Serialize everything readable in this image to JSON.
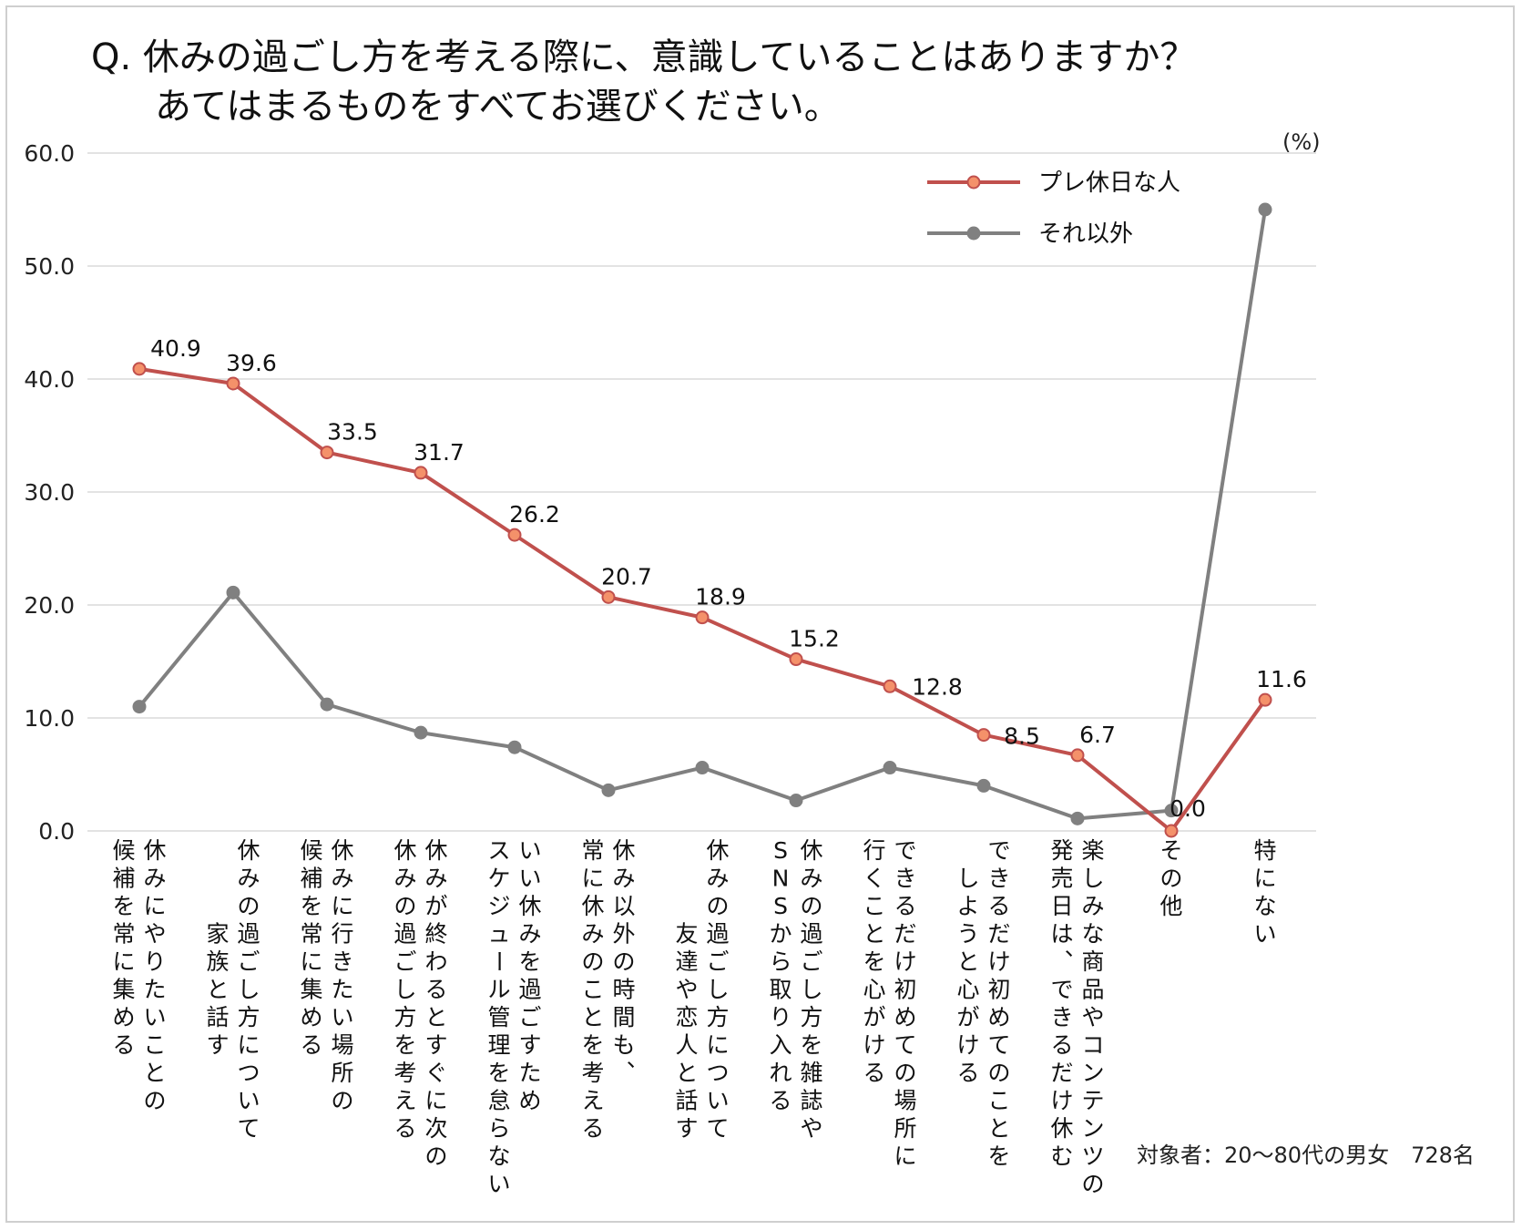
{
  "title": {
    "line1": "Q. 休みの過ごし方を考える際に、意識していることはありますか？",
    "line2": "あてはまるものをすべてお選びください。"
  },
  "unit_label": "(%)",
  "note": "対象者：20～80代の男女　728名",
  "chart_data": {
    "type": "line",
    "ylim": [
      0,
      60
    ],
    "yticks": [
      "0.0",
      "10.0",
      "20.0",
      "30.0",
      "40.0",
      "50.0",
      "60.0"
    ],
    "grid": true,
    "legend_position": "top-right",
    "categories": [
      [
        "休みにやりたいことの",
        "候補を常に集める"
      ],
      [
        "休みの過ごし方について",
        "家族と話す"
      ],
      [
        "休みに行きたい場所の",
        "候補を常に集める"
      ],
      [
        "休みが終わるとすぐに次の",
        "休みの過ごし方を考える"
      ],
      [
        "いい休みを過ごすため",
        "スケジュール管理を怠らない"
      ],
      [
        "休み以外の時間も、",
        "常に休みのことを考える"
      ],
      [
        "休みの過ごし方について",
        "友達や恋人と話す"
      ],
      [
        "休みの過ごし方を雑誌や",
        "SNSから取り入れる"
      ],
      [
        "できるだけ初めての場所に",
        "行くことを心がける"
      ],
      [
        "できるだけ初めてのことを",
        "しようと心がける"
      ],
      [
        "楽しみな商品やコンテンツの",
        "発売日は、できるだけ休む"
      ],
      [
        "その他"
      ],
      [
        "特にない"
      ]
    ],
    "series": [
      {
        "name": "プレ休日な人",
        "color": "#c0504d",
        "marker_fill": "#f4916a",
        "values": [
          40.9,
          39.6,
          33.5,
          31.7,
          26.2,
          20.7,
          18.9,
          15.2,
          12.8,
          8.5,
          6.7,
          0.0,
          11.6
        ],
        "labels": [
          "40.9",
          "39.6",
          "33.5",
          "31.7",
          "26.2",
          "20.7",
          "18.9",
          "15.2",
          "12.8",
          "8.5",
          "6.7",
          "0.0",
          "11.6"
        ]
      },
      {
        "name": "それ以外",
        "color": "#808080",
        "marker_fill": "#808080",
        "values": [
          11.0,
          21.1,
          11.2,
          8.7,
          7.4,
          3.6,
          5.6,
          2.7,
          5.6,
          4.0,
          1.1,
          1.8,
          55.0
        ]
      }
    ]
  }
}
